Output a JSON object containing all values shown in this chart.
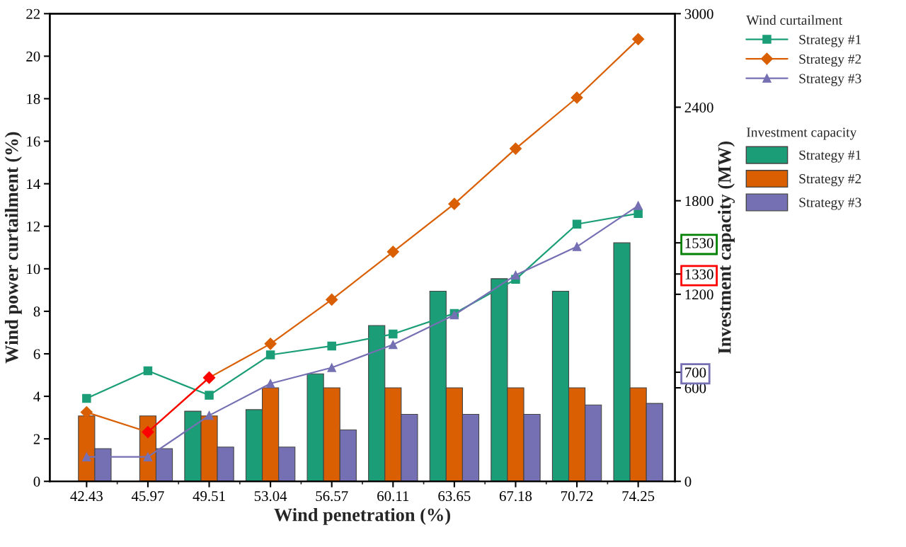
{
  "chart_data": {
    "type": "bar",
    "categories": [
      "42.43",
      "45.97",
      "49.51",
      "53.04",
      "56.57",
      "60.11",
      "63.65",
      "67.18",
      "70.72",
      "74.25"
    ],
    "xlabel": "Wind penetration (%)",
    "ylabel": "Wind power curtailment (%)",
    "y2label": "Investment capacity (MW)",
    "legend_title": [
      "Wind curtailment",
      "Investment capacity"
    ],
    "ylim": [
      0,
      22
    ],
    "yticks": [
      0,
      2,
      4,
      6,
      8,
      10,
      12,
      14,
      16,
      18,
      20,
      22
    ],
    "y2lim": [
      0,
      3000
    ],
    "y2ticks": [
      0,
      600,
      700,
      1200,
      1330,
      1530,
      1800,
      2400,
      3000
    ],
    "legend": "right",
    "grid": false,
    "series": [
      {
        "name": "Strategy #1",
        "axis": "y2",
        "color": "#1b9e77",
        "values": [
          null,
          null,
          450,
          460,
          690,
          1000,
          1220,
          1300,
          1220,
          1530
        ]
      },
      {
        "name": "Strategy #2",
        "axis": "y2",
        "color": "#d95f02",
        "values": [
          420,
          420,
          420,
          600,
          600,
          600,
          600,
          600,
          600,
          600
        ]
      },
      {
        "name": "Strategy #3",
        "axis": "y2",
        "color": "#7570b3",
        "values": [
          210,
          210,
          220,
          220,
          330,
          430,
          430,
          430,
          490,
          500
        ]
      },
      {
        "name": "Strategy #1",
        "type": "line",
        "axis": "y",
        "marker": "square",
        "color": "#1b9e77",
        "values": [
          3.9,
          5.2,
          4.05,
          5.95,
          6.37,
          6.93,
          7.9,
          9.5,
          12.1,
          12.6
        ]
      },
      {
        "name": "Strategy #2",
        "type": "line",
        "axis": "y",
        "marker": "diamond",
        "color": "#d95f02",
        "values": [
          3.25,
          2.32,
          4.88,
          6.47,
          8.55,
          10.8,
          13.05,
          15.65,
          18.05,
          20.8
        ]
      },
      {
        "name": "Strategy #3",
        "type": "line",
        "axis": "y",
        "marker": "triangle",
        "color": "#7570b3",
        "values": [
          1.15,
          1.15,
          3.1,
          4.6,
          5.35,
          6.43,
          7.83,
          9.7,
          11.04,
          12.97
        ]
      },
      {
        "type": "line",
        "axis": "y",
        "marker": "diamond",
        "color": "#ff0000",
        "values": [
          null,
          2.32,
          4.88,
          null,
          null,
          null,
          null,
          null,
          null,
          null
        ]
      }
    ]
  }
}
